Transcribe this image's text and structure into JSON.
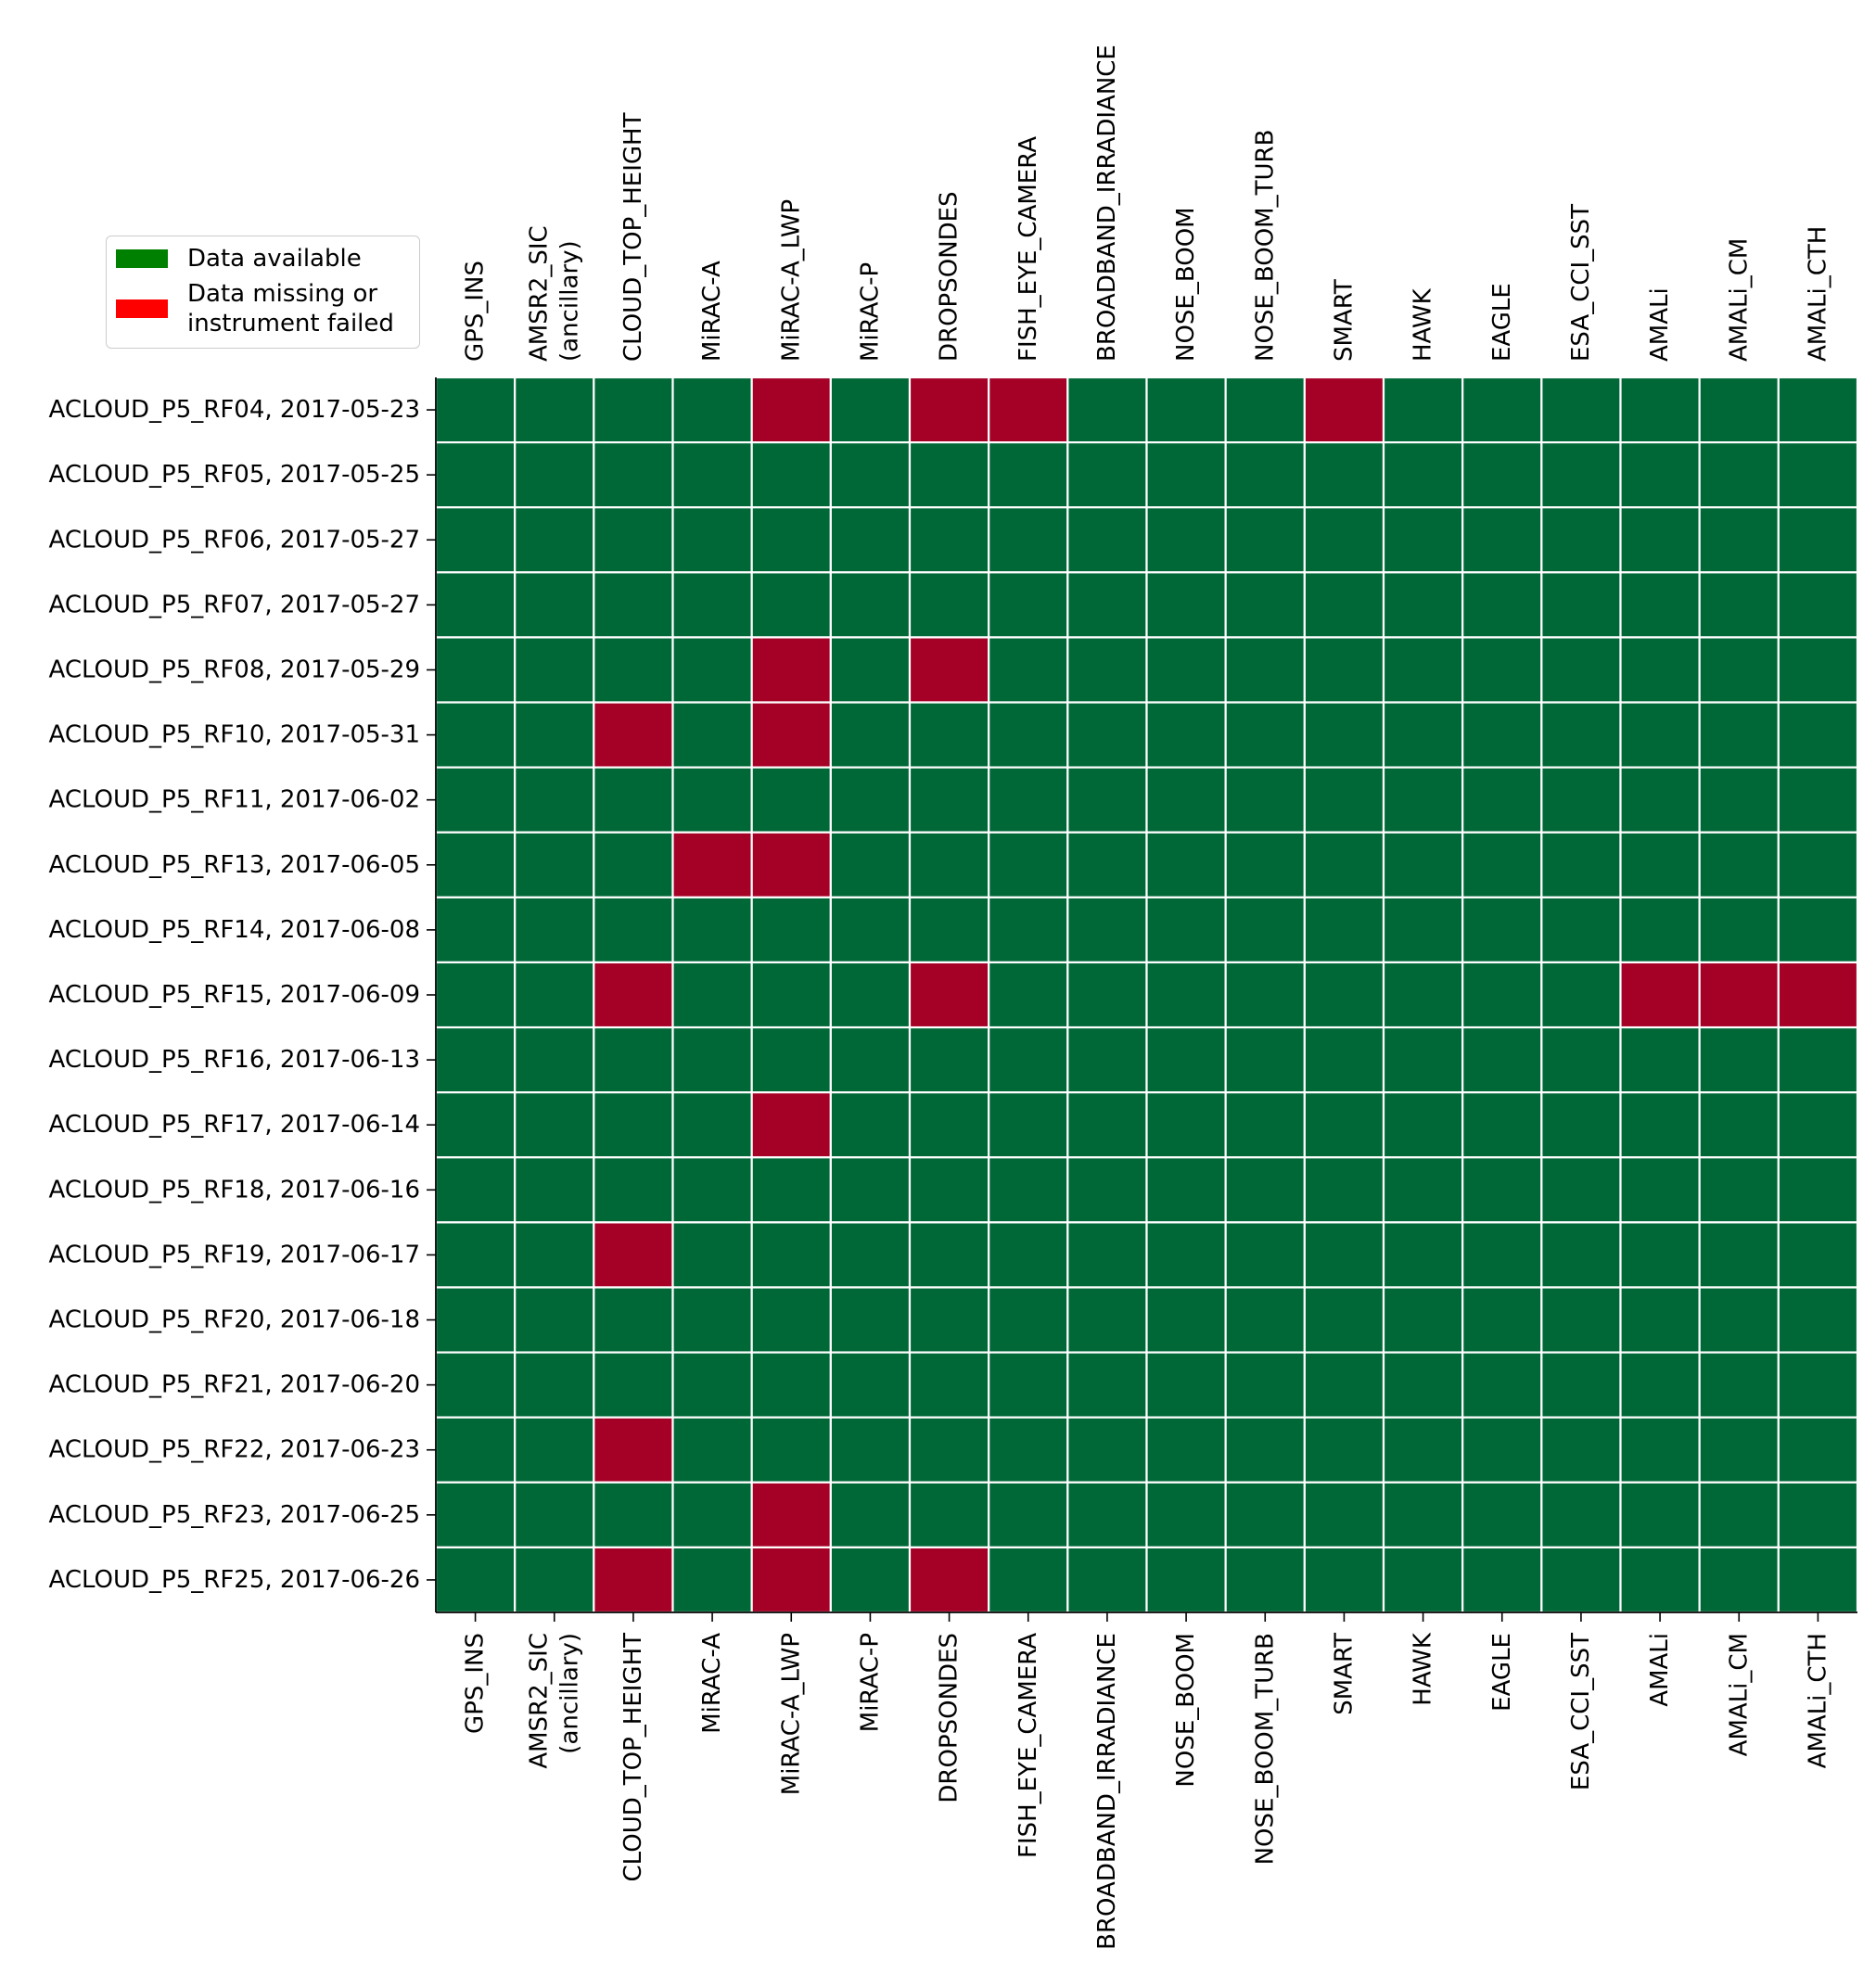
{
  "chart_data": {
    "type": "heatmap",
    "rows": [
      "ACLOUD_P5_RF04, 2017-05-23",
      "ACLOUD_P5_RF05, 2017-05-25",
      "ACLOUD_P5_RF06, 2017-05-27",
      "ACLOUD_P5_RF07, 2017-05-27",
      "ACLOUD_P5_RF08, 2017-05-29",
      "ACLOUD_P5_RF10, 2017-05-31",
      "ACLOUD_P5_RF11, 2017-06-02",
      "ACLOUD_P5_RF13, 2017-06-05",
      "ACLOUD_P5_RF14, 2017-06-08",
      "ACLOUD_P5_RF15, 2017-06-09",
      "ACLOUD_P5_RF16, 2017-06-13",
      "ACLOUD_P5_RF17, 2017-06-14",
      "ACLOUD_P5_RF18, 2017-06-16",
      "ACLOUD_P5_RF19, 2017-06-17",
      "ACLOUD_P5_RF20, 2017-06-18",
      "ACLOUD_P5_RF21, 2017-06-20",
      "ACLOUD_P5_RF22, 2017-06-23",
      "ACLOUD_P5_RF23, 2017-06-25",
      "ACLOUD_P5_RF25, 2017-06-26"
    ],
    "columns": [
      [
        "GPS_INS"
      ],
      [
        "AMSR2_SIC",
        "(ancillary)"
      ],
      [
        "CLOUD_TOP_HEIGHT"
      ],
      [
        "MiRAC-A"
      ],
      [
        "MiRAC-A_LWP"
      ],
      [
        "MiRAC-P"
      ],
      [
        "DROPSONDES"
      ],
      [
        "FISH_EYE_CAMERA"
      ],
      [
        "BROADBAND_IRRADIANCE"
      ],
      [
        "NOSE_BOOM"
      ],
      [
        "NOSE_BOOM_TURB"
      ],
      [
        "SMART"
      ],
      [
        "HAWK"
      ],
      [
        "EAGLE"
      ],
      [
        "ESA_CCI_SST"
      ],
      [
        "AMALi"
      ],
      [
        "AMALi_CM"
      ],
      [
        "AMALi_CTH"
      ]
    ],
    "values": [
      [
        1,
        1,
        1,
        1,
        0,
        1,
        0,
        0,
        1,
        1,
        1,
        0,
        1,
        1,
        1,
        1,
        1,
        1
      ],
      [
        1,
        1,
        1,
        1,
        1,
        1,
        1,
        1,
        1,
        1,
        1,
        1,
        1,
        1,
        1,
        1,
        1,
        1
      ],
      [
        1,
        1,
        1,
        1,
        1,
        1,
        1,
        1,
        1,
        1,
        1,
        1,
        1,
        1,
        1,
        1,
        1,
        1
      ],
      [
        1,
        1,
        1,
        1,
        1,
        1,
        1,
        1,
        1,
        1,
        1,
        1,
        1,
        1,
        1,
        1,
        1,
        1
      ],
      [
        1,
        1,
        1,
        1,
        0,
        1,
        0,
        1,
        1,
        1,
        1,
        1,
        1,
        1,
        1,
        1,
        1,
        1
      ],
      [
        1,
        1,
        0,
        1,
        0,
        1,
        1,
        1,
        1,
        1,
        1,
        1,
        1,
        1,
        1,
        1,
        1,
        1
      ],
      [
        1,
        1,
        1,
        1,
        1,
        1,
        1,
        1,
        1,
        1,
        1,
        1,
        1,
        1,
        1,
        1,
        1,
        1
      ],
      [
        1,
        1,
        1,
        0,
        0,
        1,
        1,
        1,
        1,
        1,
        1,
        1,
        1,
        1,
        1,
        1,
        1,
        1
      ],
      [
        1,
        1,
        1,
        1,
        1,
        1,
        1,
        1,
        1,
        1,
        1,
        1,
        1,
        1,
        1,
        1,
        1,
        1
      ],
      [
        1,
        1,
        0,
        1,
        1,
        1,
        0,
        1,
        1,
        1,
        1,
        1,
        1,
        1,
        1,
        0,
        0,
        0
      ],
      [
        1,
        1,
        1,
        1,
        1,
        1,
        1,
        1,
        1,
        1,
        1,
        1,
        1,
        1,
        1,
        1,
        1,
        1
      ],
      [
        1,
        1,
        1,
        1,
        0,
        1,
        1,
        1,
        1,
        1,
        1,
        1,
        1,
        1,
        1,
        1,
        1,
        1
      ],
      [
        1,
        1,
        1,
        1,
        1,
        1,
        1,
        1,
        1,
        1,
        1,
        1,
        1,
        1,
        1,
        1,
        1,
        1
      ],
      [
        1,
        1,
        0,
        1,
        1,
        1,
        1,
        1,
        1,
        1,
        1,
        1,
        1,
        1,
        1,
        1,
        1,
        1
      ],
      [
        1,
        1,
        1,
        1,
        1,
        1,
        1,
        1,
        1,
        1,
        1,
        1,
        1,
        1,
        1,
        1,
        1,
        1
      ],
      [
        1,
        1,
        1,
        1,
        1,
        1,
        1,
        1,
        1,
        1,
        1,
        1,
        1,
        1,
        1,
        1,
        1,
        1
      ],
      [
        1,
        1,
        0,
        1,
        1,
        1,
        1,
        1,
        1,
        1,
        1,
        1,
        1,
        1,
        1,
        1,
        1,
        1
      ],
      [
        1,
        1,
        1,
        1,
        0,
        1,
        1,
        1,
        1,
        1,
        1,
        1,
        1,
        1,
        1,
        1,
        1,
        1
      ],
      [
        1,
        1,
        0,
        1,
        0,
        1,
        0,
        1,
        1,
        1,
        1,
        1,
        1,
        1,
        1,
        1,
        1,
        1
      ]
    ],
    "cell_colors": {
      "available": "#006837",
      "missing": "#a50026"
    },
    "grid": true,
    "legend": {
      "placement": "upper-left",
      "entries": [
        {
          "label_lines": [
            "Data available"
          ],
          "color": "#008000"
        },
        {
          "label_lines": [
            "Data missing or",
            "instrument failed"
          ],
          "color": "#ff0000"
        }
      ]
    }
  }
}
